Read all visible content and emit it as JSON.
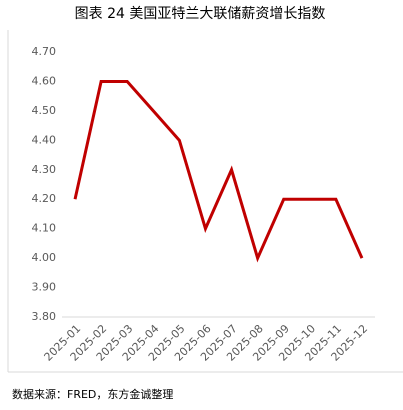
{
  "chart_data": {
    "type": "line",
    "title": "图表 24  美国亚特兰大联储薪资增长指数",
    "source": "数据来源：FRED，东方金诚整理",
    "categories": [
      "2025-01",
      "2025-02",
      "2025-03",
      "2025-04",
      "2025-05",
      "2025-06",
      "2025-07",
      "2025-08",
      "2025-09",
      "2025-10",
      "2025-11",
      "2025-12"
    ],
    "series": [
      {
        "name": "亚特兰大联储薪资增长指数",
        "color": "#c00000",
        "values": [
          4.2,
          4.6,
          4.6,
          4.5,
          4.4,
          4.1,
          4.3,
          4.0,
          4.2,
          4.2,
          4.2,
          4.0
        ]
      }
    ],
    "ylim": [
      3.8,
      4.7
    ],
    "yticks": [
      {
        "value": 3.8,
        "label": "3.80"
      },
      {
        "value": 3.9,
        "label": "3.90"
      },
      {
        "value": 4.0,
        "label": "4.00"
      },
      {
        "value": 4.1,
        "label": "4.10"
      },
      {
        "value": 4.2,
        "label": "4.20"
      },
      {
        "value": 4.3,
        "label": "4.30"
      },
      {
        "value": 4.4,
        "label": "4.40"
      },
      {
        "value": 4.5,
        "label": "4.50"
      },
      {
        "value": 4.6,
        "label": "4.60"
      },
      {
        "value": 4.7,
        "label": "4.70"
      }
    ],
    "grid": false
  }
}
